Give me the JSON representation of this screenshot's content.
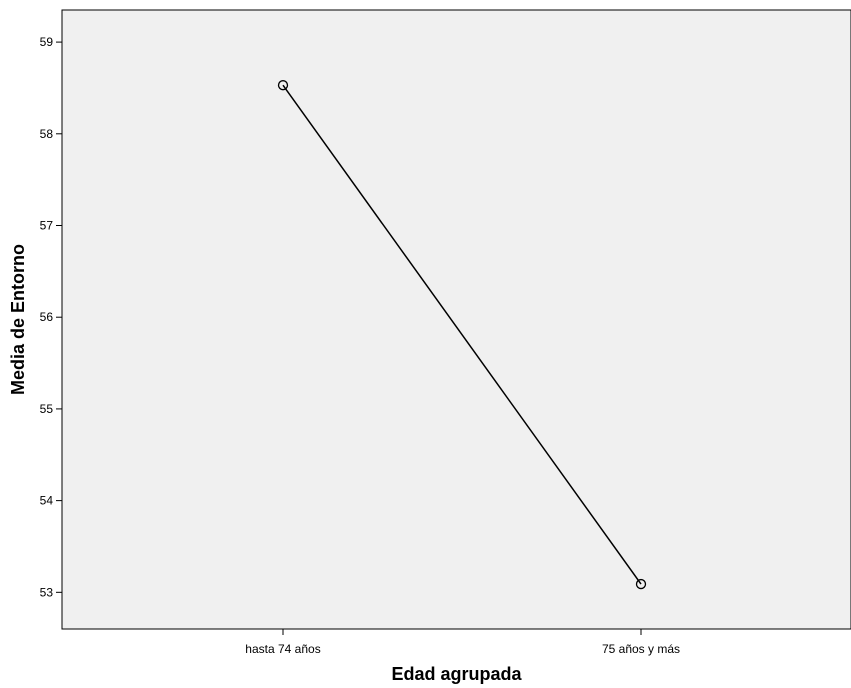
{
  "chart_data": {
    "type": "line",
    "title": "",
    "xlabel": "Edad agrupada",
    "ylabel": "Media de Entorno",
    "categories": [
      "hasta 74 años",
      "75 años y más"
    ],
    "values": [
      58.53,
      53.09
    ],
    "ylim": [
      52.6,
      59.35
    ],
    "yticks": [
      53,
      54,
      55,
      56,
      57,
      58,
      59
    ],
    "grid": false,
    "marker": "open-circle",
    "colors": {
      "plot_background": "#f0f0f0",
      "line": "#000000",
      "axis": "#000000"
    }
  }
}
